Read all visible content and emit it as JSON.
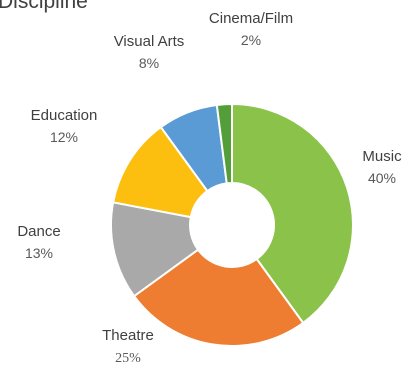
{
  "chart_data": {
    "type": "pie",
    "title": "Discipline",
    "donut": true,
    "slices": [
      {
        "label": "Music",
        "value": 40,
        "value_label": "40%",
        "color": "#8bc34a"
      },
      {
        "label": "Theatre",
        "value": 25,
        "value_label": "25%",
        "color": "#ee7d31"
      },
      {
        "label": "Dance",
        "value": 13,
        "value_label": "13%",
        "color": "#a9a9a9"
      },
      {
        "label": "Education",
        "value": 12,
        "value_label": "12%",
        "color": "#fcbe0f"
      },
      {
        "label": "Visual Arts",
        "value": 8,
        "value_label": "8%",
        "color": "#5b9bd5"
      },
      {
        "label": "Cinema/Film",
        "value": 2,
        "value_label": "2%",
        "color": "#549e39"
      }
    ],
    "start": "top",
    "direction": "clockwise",
    "slice_border_color": "#ffffff"
  }
}
